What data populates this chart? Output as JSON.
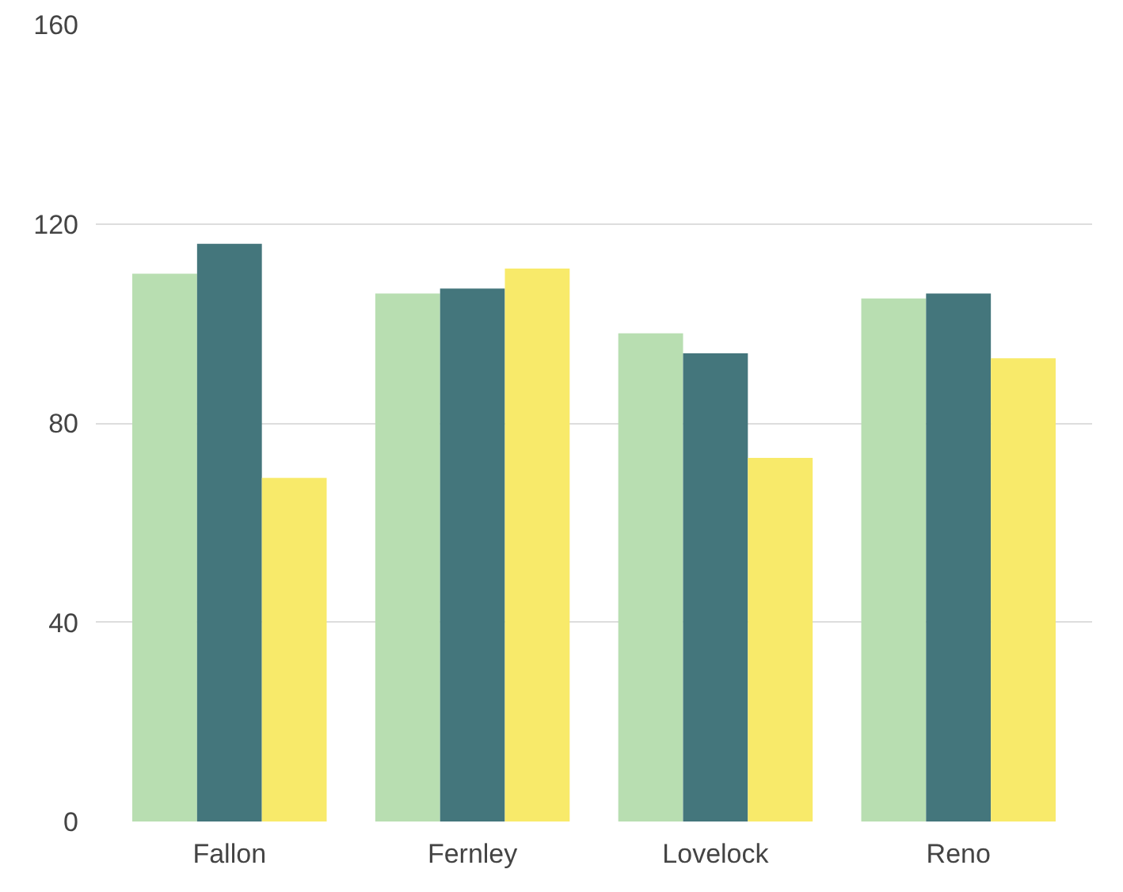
{
  "chart_data": {
    "type": "bar",
    "categories": [
      "Fallon",
      "Fernley",
      "Lovelock",
      "Reno"
    ],
    "series": [
      {
        "color": "#b8deb1",
        "values": [
          110,
          106,
          98,
          105
        ]
      },
      {
        "color": "#44767c",
        "values": [
          116,
          107,
          94,
          106
        ]
      },
      {
        "color": "#f8ea6a",
        "values": [
          69,
          111,
          73,
          93
        ]
      }
    ],
    "ylim": [
      0,
      160
    ],
    "yticks": [
      0,
      40,
      80,
      120,
      160
    ],
    "grid": "y"
  }
}
